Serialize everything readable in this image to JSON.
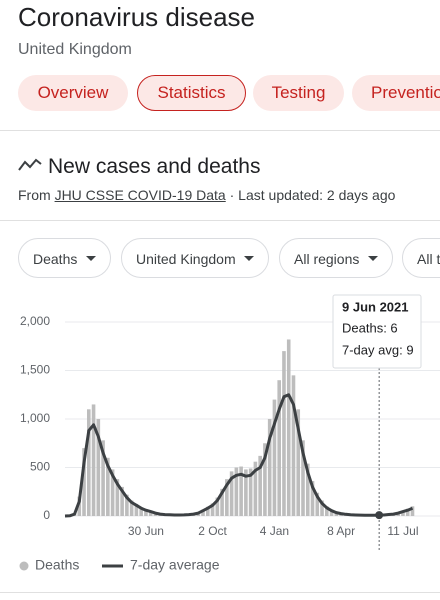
{
  "header": {
    "title": "Coronavirus disease",
    "subtitle": "United Kingdom"
  },
  "tabs": [
    "Overview",
    "Statistics",
    "Testing",
    "Preventio"
  ],
  "section": {
    "title": "New cases and deaths",
    "source_prefix": "From",
    "source_link": "JHU CSSE COVID-19 Data",
    "updated": "· Last updated: 2 days ago"
  },
  "filters": [
    "Deaths",
    "United Kingdom",
    "All regions",
    "All t"
  ],
  "tooltip": {
    "title": "9 Jun 2021",
    "lines": [
      "Deaths: 6",
      "7-day avg: 9"
    ]
  },
  "chart_data": {
    "type": "bar-line",
    "categories": [
      null,
      null,
      null,
      null,
      null,
      null,
      null,
      null,
      null,
      null,
      null,
      null,
      null,
      null,
      null,
      null,
      null,
      "30 Jun",
      null,
      null,
      null,
      null,
      null,
      null,
      null,
      null,
      null,
      null,
      null,
      null,
      null,
      "2 Oct",
      null,
      null,
      null,
      null,
      null,
      null,
      null,
      null,
      null,
      null,
      null,
      null,
      "4 Jan",
      null,
      null,
      null,
      null,
      null,
      null,
      null,
      null,
      null,
      null,
      null,
      null,
      null,
      "8 Apr",
      null,
      null,
      null,
      null,
      null,
      null,
      null,
      null,
      null,
      null,
      null,
      null,
      "11 Jul",
      null,
      null
    ],
    "series": [
      {
        "name": "Deaths",
        "color": "#bdbdbd",
        "values": [
          0,
          3,
          30,
          200,
          700,
          1100,
          1150,
          1000,
          780,
          600,
          480,
          380,
          300,
          220,
          160,
          125,
          90,
          70,
          50,
          35,
          25,
          17,
          14,
          12,
          12,
          13,
          17,
          25,
          35,
          65,
          95,
          130,
          190,
          280,
          380,
          460,
          500,
          510,
          480,
          490,
          560,
          620,
          750,
          1000,
          1200,
          1400,
          1700,
          1820,
          1450,
          1100,
          780,
          540,
          360,
          240,
          160,
          100,
          65,
          42,
          30,
          22,
          15,
          12,
          11,
          10,
          9,
          10,
          6,
          12,
          18,
          25,
          36,
          55,
          75,
          100
        ]
      },
      {
        "name": "7-day average",
        "color": "#3c4043",
        "values": [
          0,
          2,
          20,
          150,
          550,
          880,
          940,
          820,
          650,
          520,
          420,
          330,
          260,
          190,
          140,
          110,
          80,
          60,
          45,
          30,
          20,
          14,
          12,
          10,
          10,
          11,
          14,
          20,
          30,
          55,
          80,
          110,
          160,
          240,
          320,
          390,
          420,
          430,
          410,
          420,
          470,
          500,
          600,
          800,
          950,
          1100,
          1230,
          1250,
          1150,
          900,
          650,
          450,
          300,
          200,
          130,
          85,
          55,
          35,
          25,
          18,
          12,
          10,
          9,
          8,
          7,
          8,
          9,
          10,
          15,
          20,
          30,
          45,
          60,
          80
        ]
      }
    ],
    "ylim": [
      0,
      2000
    ],
    "yticks": [
      0,
      {
        "value": 500,
        "label": "500"
      },
      {
        "value": 1000,
        "label": "1,000"
      },
      {
        "value": 1500,
        "label": "1,500"
      },
      {
        "value": 2000,
        "label": "2,000"
      }
    ],
    "grid": true
  }
}
